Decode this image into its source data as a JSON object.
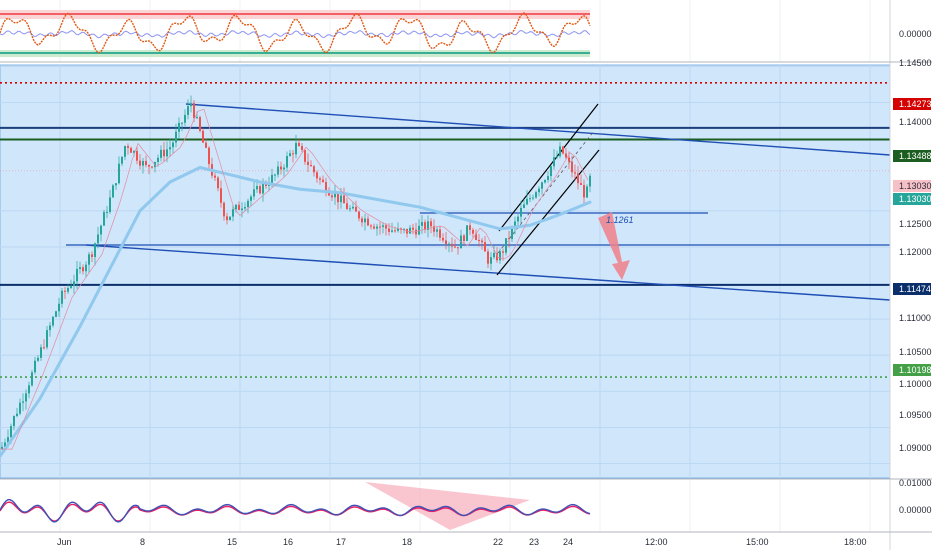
{
  "chart_data": [
    {
      "type": "line",
      "panel": "top-oscillator",
      "yaxis_ticks": [
        {
          "label": "0.00000",
          "value": 0.0
        }
      ],
      "upper_band_color": "#f23645",
      "lower_band_color": "#089981",
      "series_colors": [
        "#e05a16",
        "#8e94f2"
      ],
      "grid": true
    },
    {
      "type": "line",
      "panel": "price",
      "ylim": [
        1.088,
        1.1452
      ],
      "yaxis_ticks": [
        {
          "label": "1.14500",
          "value": 1.145
        },
        {
          "label": "1.14000",
          "value": 1.14
        },
        {
          "label": "1.12500",
          "value": 1.125
        },
        {
          "label": "1.12000",
          "value": 1.12
        },
        {
          "label": "1.11000",
          "value": 1.11
        },
        {
          "label": "1.10500",
          "value": 1.105
        },
        {
          "label": "1.10000",
          "value": 1.1
        },
        {
          "label": "1.09500",
          "value": 1.095
        },
        {
          "label": "1.09000",
          "value": 1.09
        }
      ],
      "price_tags": [
        {
          "label": "1.14273",
          "value": 1.14273,
          "color": "#d50000",
          "style": "dotted"
        },
        {
          "label": "1.13488",
          "value": 1.13488,
          "color": "#1b5e20",
          "style": "solid"
        },
        {
          "label": "1.13030",
          "value": 1.13055,
          "color": "#f7c0c7",
          "style": "none"
        },
        {
          "label": "1.13030",
          "value": 1.1286,
          "color": "#26a69a",
          "style": "none"
        },
        {
          "label": "1.11474",
          "value": 1.11474,
          "color": "#0b2f6b",
          "style": "solid"
        },
        {
          "label": "1.10198",
          "value": 1.10198,
          "color": "#43a047",
          "style": "dotted"
        }
      ],
      "annotations": [
        {
          "text": "1.1261",
          "value": 1.1261
        }
      ],
      "moving_average_color": "#90c8ee",
      "candle_up_color": "#26a69a",
      "candle_down_color": "#ef5350",
      "background_color": "#cfe6fb",
      "grid": true
    },
    {
      "type": "line",
      "panel": "bottom-oscillator",
      "yaxis_ticks": [
        {
          "label": "0.01000",
          "value": 0.01
        },
        {
          "label": "0.00000",
          "value": 0.0
        }
      ],
      "series_colors": [
        "#3f51b5",
        "#e91e63"
      ],
      "grid": true
    }
  ],
  "xaxis": {
    "ticks": [
      "Jun",
      "8",
      "15",
      "16",
      "17",
      "18",
      "22",
      "23",
      "24",
      "12:00",
      "15:00",
      "18:00"
    ]
  }
}
